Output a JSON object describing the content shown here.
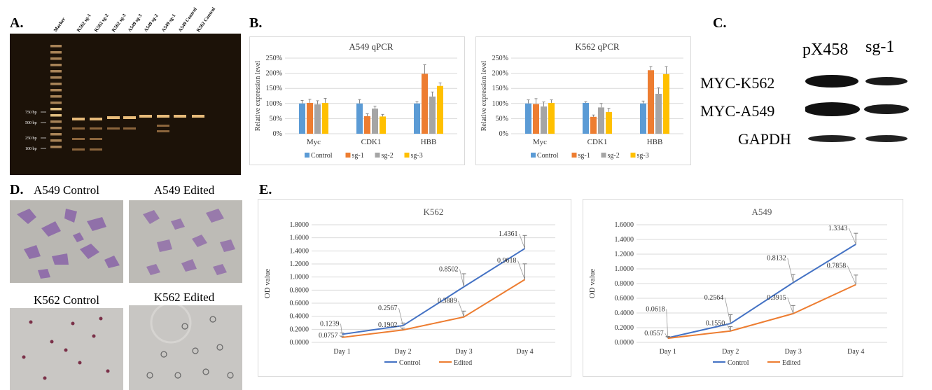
{
  "panels": {
    "a": "A.",
    "b": "B.",
    "c": "C.",
    "d": "D.",
    "e": "E."
  },
  "gel": {
    "lanes": [
      "Marker",
      "K562 sg-1",
      "K562 sg-2",
      "K562 sg-3",
      "A549 sg-3",
      "A549 sg-2",
      "A549 sg-1",
      "A549 Control",
      "K562 Control"
    ],
    "ladder": [
      "750 bp",
      "500 bp",
      "250 bp",
      "100 bp"
    ]
  },
  "western": {
    "columns": [
      "pX458",
      "sg-1"
    ],
    "rows": [
      "MYC-K562",
      "MYC-A549",
      "GAPDH"
    ]
  },
  "micro": {
    "a549_control": "A549 Control",
    "a549_edited": "A549 Edited",
    "k562_control": "K562 Control",
    "k562_edited": "K562 Edited"
  },
  "chart_data": [
    {
      "type": "bar",
      "title": "A549 qPCR",
      "ylabel": "Relative expression level",
      "categories": [
        "Myc",
        "CDK1",
        "HBB"
      ],
      "yticks": [
        "0%",
        "50%",
        "100%",
        "150%",
        "200%",
        "250%"
      ],
      "ylim": [
        0,
        250
      ],
      "legend": "bottom",
      "series": [
        {
          "name": "Control",
          "color": "#5b9bd5",
          "values": [
            100,
            100,
            100
          ],
          "errors": [
            10,
            13,
            6
          ]
        },
        {
          "name": "sg-1",
          "color": "#ed7d31",
          "values": [
            102,
            58,
            198
          ],
          "errors": [
            12,
            8,
            30
          ]
        },
        {
          "name": "sg-2",
          "color": "#a5a5a5",
          "values": [
            97,
            83,
            123
          ],
          "errors": [
            12,
            8,
            15
          ]
        },
        {
          "name": "sg-3",
          "color": "#ffc000",
          "values": [
            102,
            57,
            158
          ],
          "errors": [
            15,
            7,
            10
          ]
        }
      ]
    },
    {
      "type": "bar",
      "title": "K562 qPCR",
      "ylabel": "Relative expression level",
      "categories": [
        "Myc",
        "CDK1",
        "HBB"
      ],
      "yticks": [
        "0%",
        "50%",
        "100%",
        "150%",
        "200%",
        "250%"
      ],
      "ylim": [
        0,
        250
      ],
      "legend": "bottom",
      "series": [
        {
          "name": "Control",
          "color": "#5b9bd5",
          "values": [
            100,
            102,
            100
          ],
          "errors": [
            12,
            4,
            8
          ]
        },
        {
          "name": "sg-1",
          "color": "#ed7d31",
          "values": [
            98,
            56,
            210
          ],
          "errors": [
            18,
            6,
            12
          ]
        },
        {
          "name": "sg-2",
          "color": "#a5a5a5",
          "values": [
            90,
            87,
            132
          ],
          "errors": [
            15,
            13,
            20
          ]
        },
        {
          "name": "sg-3",
          "color": "#ffc000",
          "values": [
            102,
            72,
            197
          ],
          "errors": [
            10,
            12,
            25
          ]
        }
      ]
    },
    {
      "type": "line",
      "title": "K562",
      "ylabel": "OD value",
      "categories": [
        "Day 1",
        "Day 2",
        "Day 3",
        "Day 4"
      ],
      "yticks": [
        "0.0000",
        "0.2000",
        "0.4000",
        "0.6000",
        "0.8000",
        "1.0000",
        "1.2000",
        "1.4000",
        "1.6000",
        "1.8000"
      ],
      "ylim": [
        0,
        1.8
      ],
      "legend": "bottom",
      "series": [
        {
          "name": "Control",
          "color": "#4472c4",
          "values": [
            0.1239,
            0.2567,
            0.8502,
            1.4361
          ],
          "errors": [
            0.02,
            0.04,
            0.2,
            0.2
          ],
          "labels": [
            "0.1239",
            "0.2567",
            "0.8502",
            "1.4361"
          ]
        },
        {
          "name": "Edited",
          "color": "#ed7d31",
          "values": [
            0.0757,
            0.1902,
            0.3889,
            0.9618
          ],
          "errors": [
            0.02,
            0.03,
            0.09,
            0.24
          ],
          "labels": [
            "0.0757",
            "0.1902",
            "0.3889",
            "0.9618"
          ]
        }
      ]
    },
    {
      "type": "line",
      "title": "A549",
      "ylabel": "OD value",
      "categories": [
        "Day 1",
        "Day 2",
        "Day 3",
        "Day 4"
      ],
      "yticks": [
        "0.0000",
        "0.2000",
        "0.4000",
        "0.6000",
        "0.8000",
        "1.0000",
        "1.2000",
        "1.4000",
        "1.6000"
      ],
      "ylim": [
        0,
        1.6
      ],
      "legend": "bottom",
      "series": [
        {
          "name": "Control",
          "color": "#4472c4",
          "values": [
            0.0618,
            0.2564,
            0.8132,
            1.3343
          ],
          "errors": [
            0.02,
            0.12,
            0.11,
            0.15
          ],
          "labels": [
            "0.0618",
            "0.2564",
            "0.8132",
            "1.3343"
          ]
        },
        {
          "name": "Edited",
          "color": "#ed7d31",
          "values": [
            0.0557,
            0.155,
            0.3915,
            0.7858
          ],
          "errors": [
            0.02,
            0.06,
            0.11,
            0.13
          ],
          "labels": [
            "0.0557",
            "0.1550",
            "0.3915",
            "0.7858"
          ]
        }
      ]
    }
  ]
}
